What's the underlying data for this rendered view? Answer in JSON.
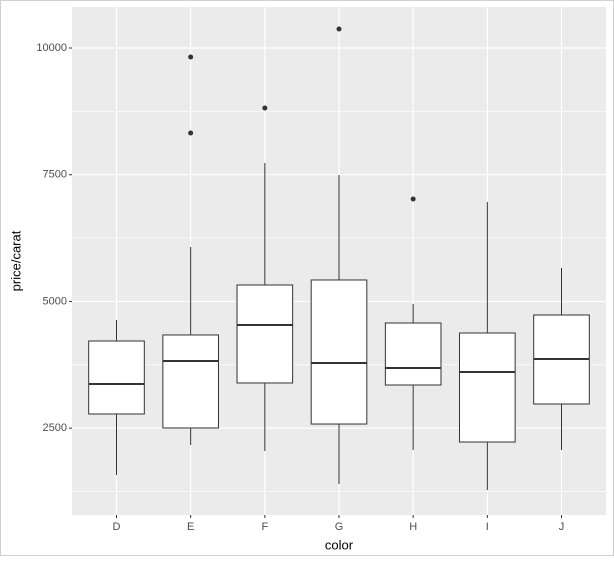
{
  "chart_data": {
    "type": "boxplot",
    "x_label": "color",
    "y_label": "price/carat",
    "categories": [
      "D",
      "E",
      "F",
      "G",
      "H",
      "I",
      "J"
    ],
    "boxes": [
      {
        "min": 1575,
        "q1": 2779,
        "median": 3371,
        "q3": 4219,
        "max": 4633,
        "outliers": []
      },
      {
        "min": 2167,
        "q1": 2503,
        "median": 3825,
        "q3": 4338,
        "max": 6074,
        "outliers": [
          8323,
          9822
        ]
      },
      {
        "min": 2049,
        "q1": 3391,
        "median": 4535,
        "q3": 5324,
        "max": 7731,
        "outliers": [
          8816
        ]
      },
      {
        "min": 1398,
        "q1": 2581,
        "median": 3785,
        "q3": 5423,
        "max": 7494,
        "outliers": [
          10375
        ]
      },
      {
        "min": 2069,
        "q1": 3351,
        "median": 3686,
        "q3": 4574,
        "max": 4949,
        "outliers": [
          7021
        ]
      },
      {
        "min": 1279,
        "q1": 2226,
        "median": 3608,
        "q3": 4377,
        "max": 6962,
        "outliers": []
      },
      {
        "min": 2069,
        "q1": 2976,
        "median": 3864,
        "q3": 4732,
        "max": 5659,
        "outliers": []
      }
    ],
    "box_fill": "#ffffff",
    "line_color": "#333333",
    "ylim": [
      786,
      10809
    ],
    "yticks": [
      2500,
      5000,
      7500,
      10000
    ],
    "minor_yticks": [
      1250,
      3750,
      6250,
      8750
    ],
    "grid": true
  }
}
